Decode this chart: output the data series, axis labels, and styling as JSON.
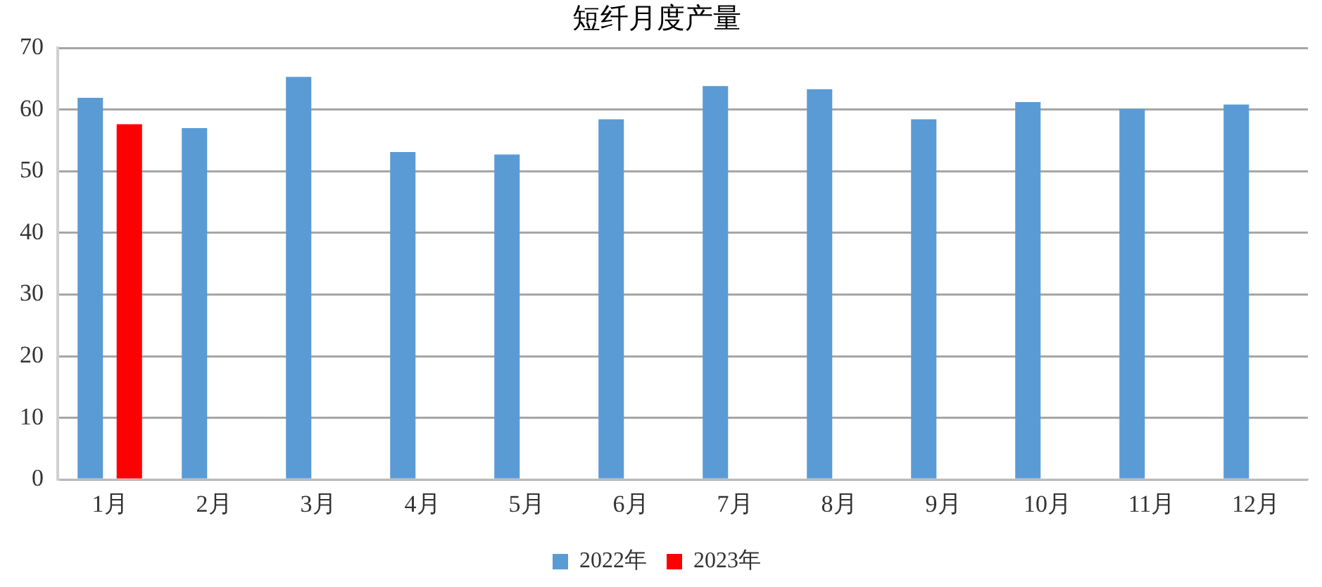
{
  "chart_data": {
    "type": "bar",
    "title": "短纤月度产量",
    "categories": [
      "1月",
      "2月",
      "3月",
      "4月",
      "5月",
      "6月",
      "7月",
      "8月",
      "9月",
      "10月",
      "11月",
      "12月"
    ],
    "series": [
      {
        "name": "2022年",
        "color": "#5b9bd5",
        "values": [
          61.9,
          57.0,
          65.3,
          53.1,
          52.7,
          58.4,
          63.8,
          63.3,
          58.4,
          61.2,
          60.1,
          60.8
        ]
      },
      {
        "name": "2023年",
        "color": "#ff0000",
        "values": [
          57.6,
          null,
          null,
          null,
          null,
          null,
          null,
          null,
          null,
          null,
          null,
          null
        ]
      }
    ],
    "ylim": [
      0,
      70
    ],
    "yticks": [
      0,
      10,
      20,
      30,
      40,
      50,
      60,
      70
    ],
    "grid": "y",
    "legend": "bottom"
  }
}
